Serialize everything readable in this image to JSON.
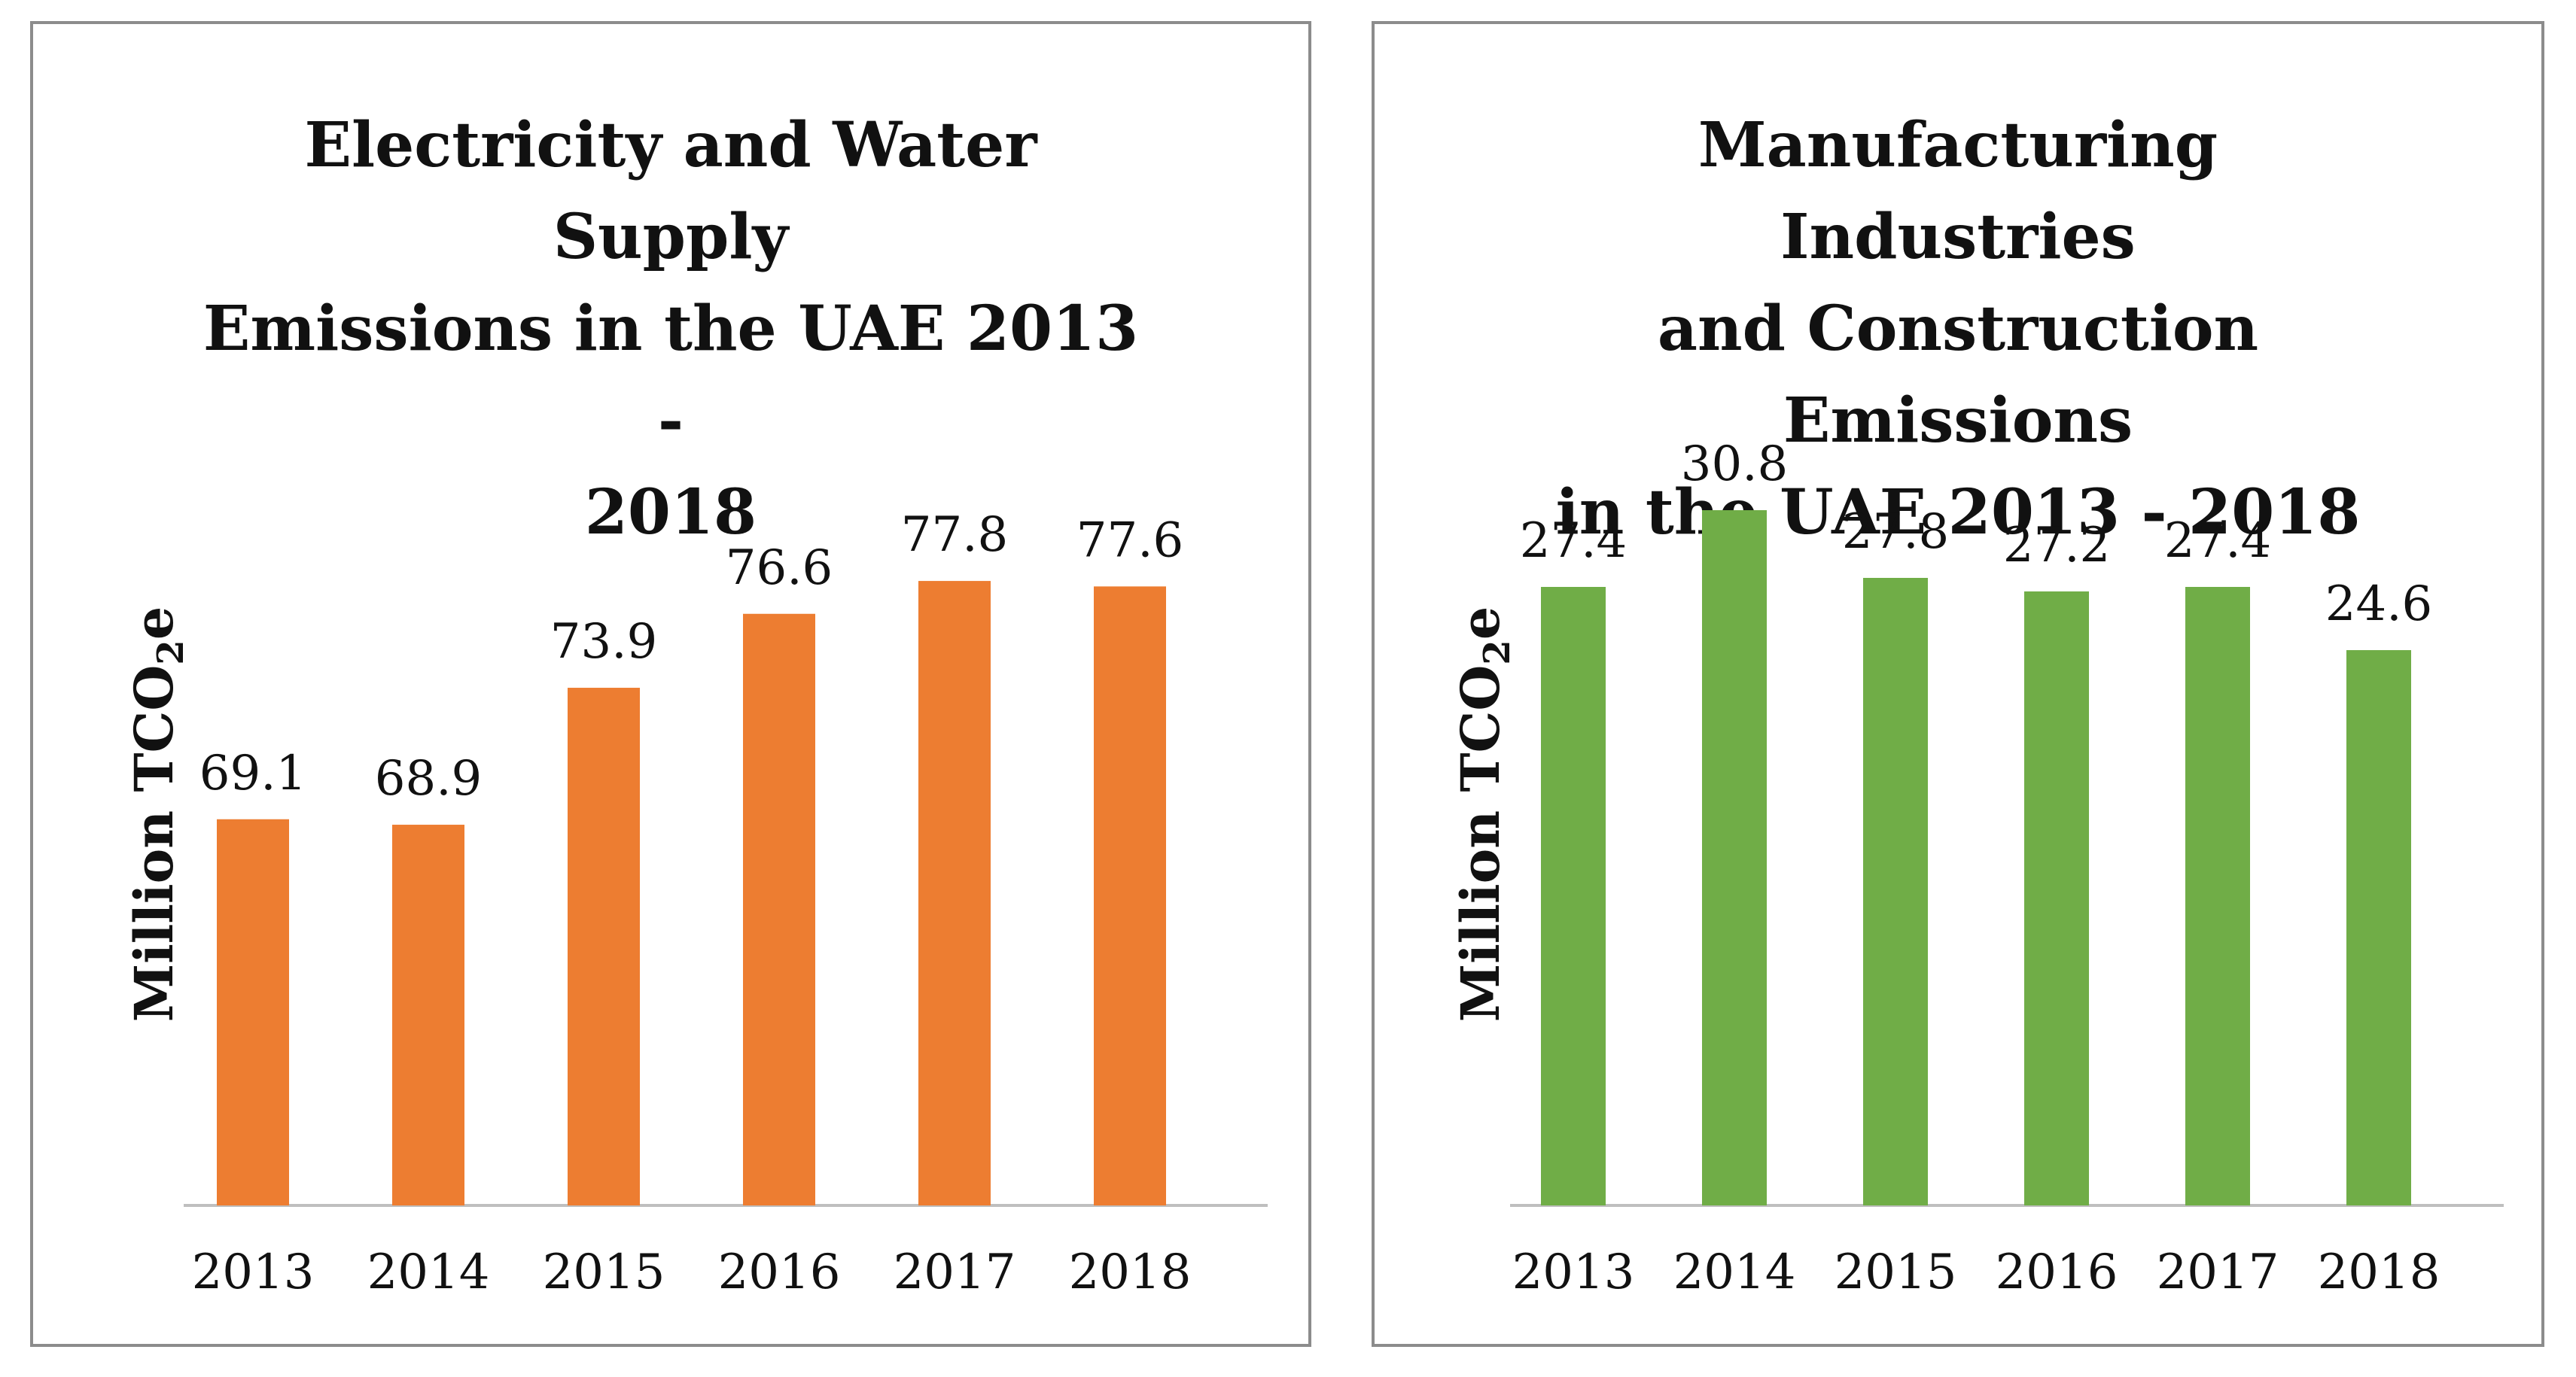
{
  "colors": {
    "left_bar": "#ED7D31",
    "right_bar": "#70AD47",
    "axis": "#bfbfbf",
    "border": "#8c8c8c"
  },
  "chart_data": [
    {
      "type": "bar",
      "title_lines": [
        "Electricity and Water Supply",
        "Emissions in the UAE 2013 -",
        "2018"
      ],
      "ylabel_main": "Million TCO",
      "ylabel_sub": "2",
      "ylabel_tail": "e",
      "categories": [
        "2013",
        "2014",
        "2015",
        "2016",
        "2017",
        "2018"
      ],
      "values": [
        69.1,
        68.9,
        73.9,
        76.6,
        77.8,
        77.6
      ],
      "value_labels": [
        "69.1",
        "68.9",
        "73.9",
        "76.6",
        "77.8",
        "77.6"
      ],
      "ylim": [
        55,
        80
      ],
      "grid": false
    },
    {
      "type": "bar",
      "title_lines": [
        "Manufacturing Industries",
        "and Construction Emissions",
        "in the UAE 2013 - 2018"
      ],
      "ylabel_main": "Million TCO",
      "ylabel_sub": "2",
      "ylabel_tail": "e",
      "categories": [
        "2013",
        "2014",
        "2015",
        "2016",
        "2017",
        "2018"
      ],
      "values": [
        27.4,
        30.8,
        27.8,
        27.2,
        27.4,
        24.6
      ],
      "value_labels": [
        "27.4",
        "30.8",
        "27.8",
        "27.2",
        "27.4",
        "24.6"
      ],
      "ylim": [
        0,
        33
      ],
      "grid": false
    }
  ]
}
